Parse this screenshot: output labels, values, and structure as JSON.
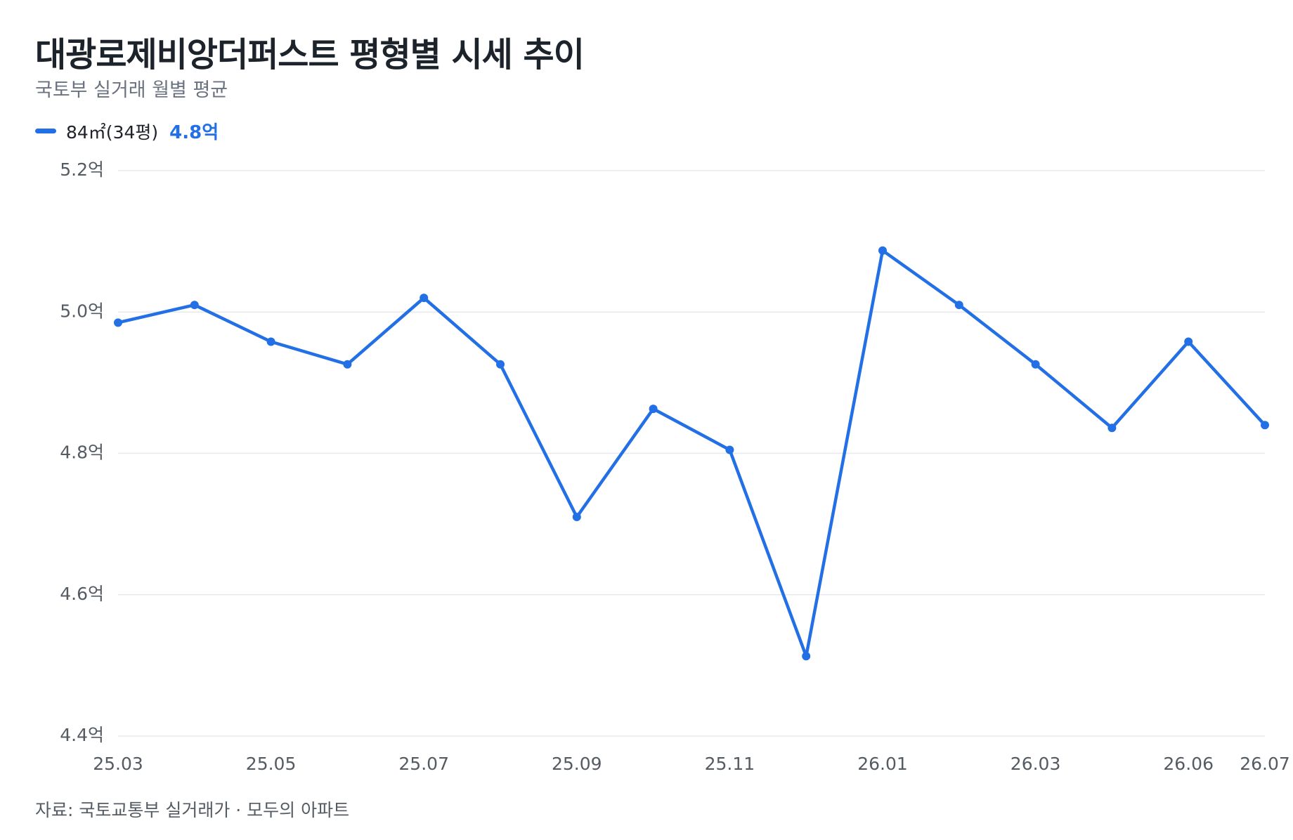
{
  "title": "대광로제비앙더퍼스트 평형별 시세 추이",
  "subtitle": "국토부 실거래 월별 평균",
  "legend": {
    "name": "84㎡(34평)",
    "value": "4.8억"
  },
  "colors": {
    "series": "#2370e6",
    "grid": "#e6e8ec",
    "axis_text": "#555b63"
  },
  "footer": "자료: 국토교통부 실거래가 · 모두의 아파트",
  "chart_data": {
    "type": "line",
    "title": "대광로제비앙더퍼스트 평형별 시세 추이",
    "subtitle": "국토부 실거래 월별 평균",
    "x": [
      "25.03",
      "25.04",
      "25.05",
      "25.06",
      "25.07",
      "25.08",
      "25.09",
      "25.10",
      "25.11",
      "25.12",
      "26.01",
      "26.02",
      "26.03",
      "26.04",
      "26.06",
      "26.07"
    ],
    "x_tick_labels": [
      "25.03",
      "25.05",
      "25.07",
      "25.09",
      "25.11",
      "26.01",
      "26.03",
      "26.06",
      "26.07"
    ],
    "series": [
      {
        "name": "84㎡(34평)",
        "values": [
          4.985,
          5.01,
          4.958,
          4.926,
          5.02,
          4.926,
          4.71,
          4.863,
          4.805,
          4.513,
          5.087,
          5.01,
          4.926,
          4.836,
          4.958,
          4.84
        ]
      }
    ],
    "ylim": [
      4.4,
      5.2
    ],
    "y_ticks": [
      4.4,
      4.6,
      4.8,
      5.0,
      5.2
    ],
    "y_tick_labels": [
      "4.4억",
      "4.6억",
      "4.8억",
      "5.0억",
      "5.2억"
    ],
    "grid": true,
    "legend_position": "top-left"
  }
}
